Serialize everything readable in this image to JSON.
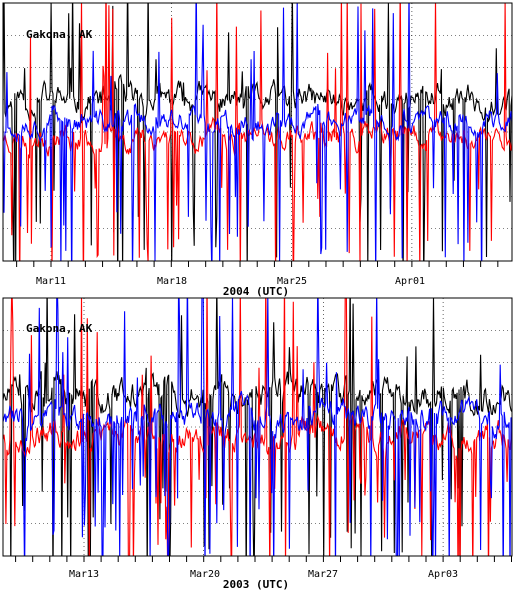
{
  "chart_data": [
    {
      "type": "line",
      "station": "Gakona, AK",
      "xlabel": "2004 (UTC)",
      "tick_labels": [
        "Mar11",
        "Mar18",
        "Mar25",
        "Apr01"
      ],
      "x_start": "2004-03-08",
      "x_end": "2004-04-07",
      "ylim": [
        -4,
        4
      ],
      "grid": true,
      "series_colors": [
        "#000000",
        "#ff0000",
        "#0000ff"
      ],
      "series": [
        {
          "color": "#000000",
          "baseline": 1,
          "variance": 0.6,
          "spike_rate": 0.1,
          "seed": 11
        },
        {
          "color": "#ff0000",
          "baseline": -0.15,
          "variance": 0.55,
          "spike_rate": 0.08,
          "seed": 23
        },
        {
          "color": "#0000ff",
          "baseline": 0.3,
          "variance": 0.5,
          "spike_rate": 0.12,
          "seed": 37
        }
      ]
    },
    {
      "type": "line",
      "station": "Gakona, AK",
      "xlabel": "2003 (UTC)",
      "tick_labels": [
        "Mar13",
        "Mar20",
        "Mar27",
        "Apr03"
      ],
      "x_start": "2003-03-10",
      "x_end": "2003-04-09",
      "ylim": [
        -4,
        4
      ],
      "grid": true,
      "series_colors": [
        "#000000",
        "#ff0000",
        "#0000ff"
      ],
      "series": [
        {
          "color": "#000000",
          "baseline": 1,
          "variance": 0.7,
          "spike_rate": 0.13,
          "seed": 51
        },
        {
          "color": "#ff0000",
          "baseline": -0.25,
          "variance": 0.6,
          "spike_rate": 0.1,
          "seed": 67
        },
        {
          "color": "#0000ff",
          "baseline": 0.3,
          "variance": 0.6,
          "spike_rate": 0.16,
          "seed": 83
        }
      ]
    }
  ]
}
